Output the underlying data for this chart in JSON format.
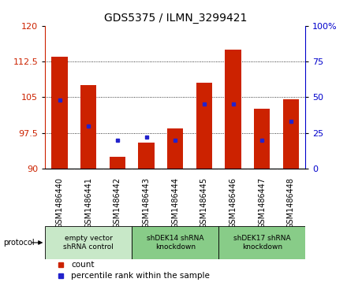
{
  "title": "GDS5375 / ILMN_3299421",
  "samples": [
    "GSM1486440",
    "GSM1486441",
    "GSM1486442",
    "GSM1486443",
    "GSM1486444",
    "GSM1486445",
    "GSM1486446",
    "GSM1486447",
    "GSM1486448"
  ],
  "counts": [
    113.5,
    107.5,
    92.5,
    95.5,
    98.5,
    108.0,
    115.0,
    102.5,
    104.5
  ],
  "percentile_ranks": [
    48,
    30,
    20,
    22,
    20,
    45,
    45,
    20,
    33
  ],
  "ylim_left": [
    90,
    120
  ],
  "ylim_right": [
    0,
    100
  ],
  "yticks_left": [
    90,
    97.5,
    105,
    112.5,
    120
  ],
  "yticks_right": [
    0,
    25,
    50,
    75,
    100
  ],
  "bar_color": "#cc2200",
  "blue_color": "#2222cc",
  "bar_bottom": 90,
  "groups": [
    {
      "label": "empty vector\nshRNA control",
      "start": 0,
      "end": 3
    },
    {
      "label": "shDEK14 shRNA\nknockdown",
      "start": 3,
      "end": 6
    },
    {
      "label": "shDEK17 shRNA\nknockdown",
      "start": 6,
      "end": 9
    }
  ],
  "group_colors": [
    "#c8e8c8",
    "#88cc88",
    "#88cc88"
  ],
  "protocol_label": "protocol",
  "legend_items": [
    {
      "color": "#cc2200",
      "label": "count"
    },
    {
      "color": "#2222cc",
      "label": "percentile rank within the sample"
    }
  ],
  "plot_bg": "#ffffff",
  "right_axis_color": "#0000cc",
  "left_axis_color": "#cc2200",
  "tick_area_bg": "#d8d8d8"
}
